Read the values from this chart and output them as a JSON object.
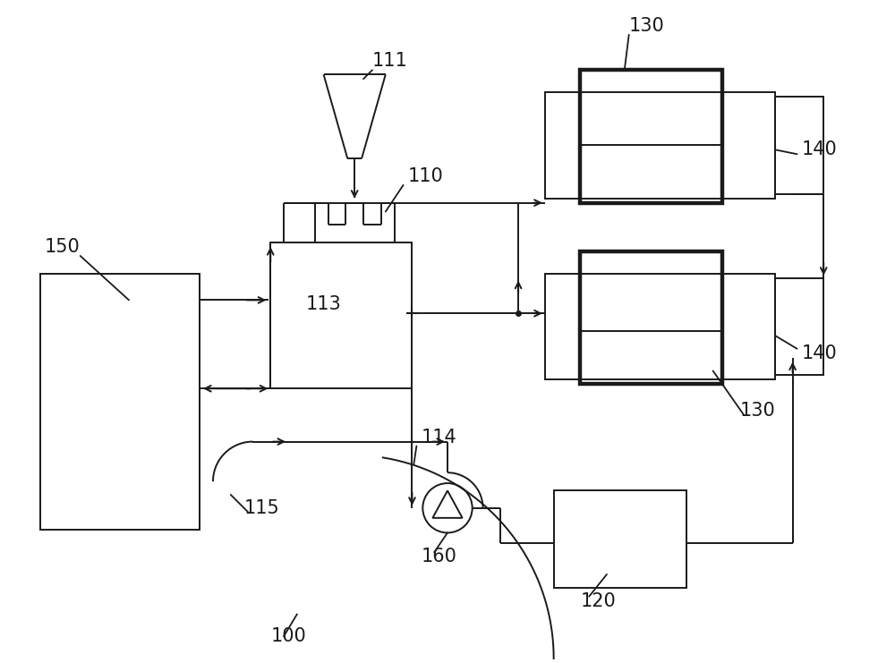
{
  "bg_color": "#ffffff",
  "line_color": "#1a1a1a",
  "thick_lw": 3.2,
  "thin_lw": 1.4,
  "label_fontsize": 15,
  "figsize": [
    10.0,
    7.41
  ]
}
